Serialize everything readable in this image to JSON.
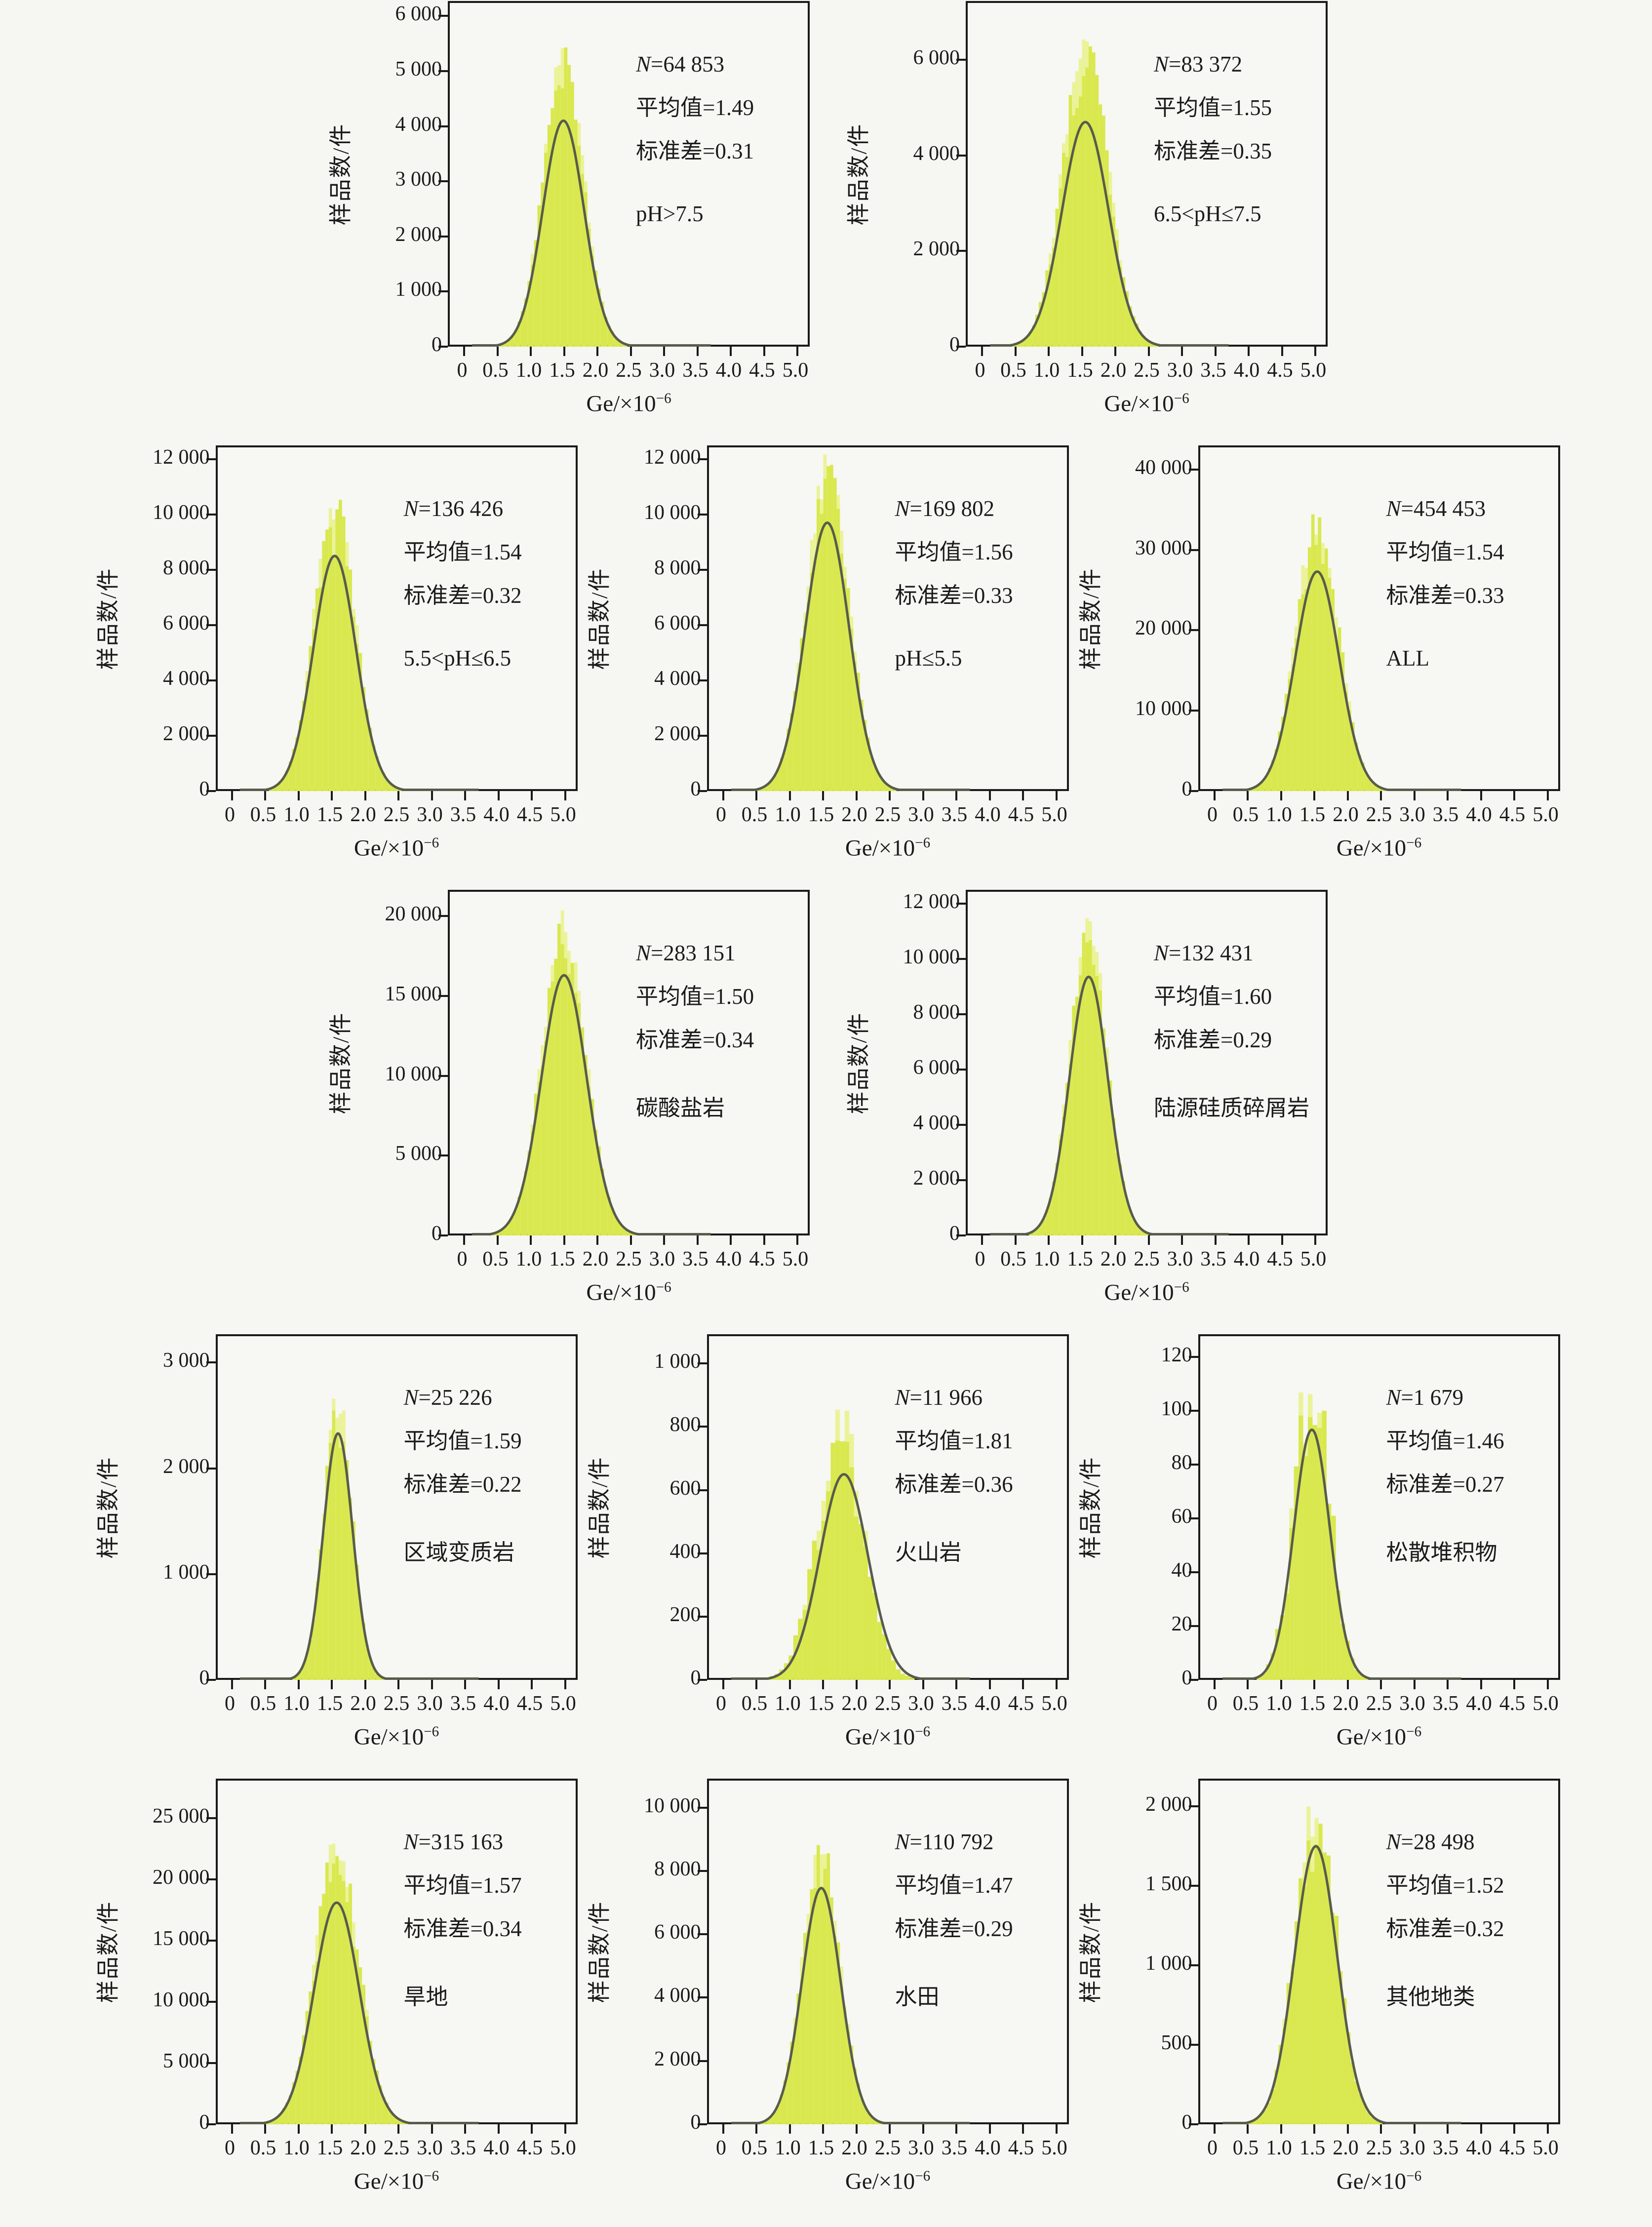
{
  "figure": {
    "background": "#f6f6f3",
    "text_color": "#1b1b1b",
    "histogram_fill": "#d9e84e",
    "histogram_fill_light": "#ebf398",
    "curve_color": "#585c4c",
    "axis_color": "#1a1a1a",
    "y_axis_label": "样品数/件",
    "x_axis_label_base": "Ge/×10",
    "x_axis_label_exp": "−6",
    "x_tick_values": [
      0,
      0.5,
      1.0,
      1.5,
      2.0,
      2.5,
      3.0,
      3.5,
      4.0,
      4.5,
      5.0
    ],
    "x_tick_labels": [
      "0",
      "0.5",
      "1.0",
      "1.5",
      "2.0",
      "2.5",
      "3.0",
      "3.5",
      "4.0",
      "4.5",
      "5.0"
    ],
    "annot_prefix": {
      "n": "N",
      "mean": "平均值",
      "std": "标准差"
    }
  },
  "layout_rows": [
    [
      0,
      1
    ],
    [
      2,
      3,
      4
    ],
    [
      5,
      6
    ],
    [
      7,
      8,
      9
    ],
    [
      10,
      11,
      12
    ]
  ],
  "chart_data": [
    {
      "type": "histogram+normal-fit",
      "group_label": "pH>7.5",
      "N_label": "N=64 853",
      "mean_label": "平均值=1.49",
      "std_label": "标准差=0.31",
      "N_value": "64 853",
      "mean_value": "1.49",
      "std_value": "0.31",
      "N": 64853,
      "mean": 1.49,
      "std": 0.31,
      "x_range": [
        0,
        5
      ],
      "y_max": 6200,
      "y_ticks": [
        0,
        1000,
        2000,
        3000,
        4000,
        5000,
        6000
      ],
      "y_tick_labels": [
        "0",
        "1 000",
        "2 000",
        "3 000",
        "4 000",
        "5 000",
        "6 000"
      ],
      "hist_peak": 5270,
      "curve_peak": 4100,
      "bin": 0.05,
      "jitter": 0.12,
      "hist_shift": 0
    },
    {
      "type": "histogram+normal-fit",
      "group_label": "6.5<pH≤7.5",
      "N_label": "N=83 372",
      "mean_label": "平均值=1.55",
      "std_label": "标准差=0.35",
      "N_value": "83 372",
      "mean_value": "1.55",
      "std_value": "0.35",
      "N": 83372,
      "mean": 1.55,
      "std": 0.35,
      "x_range": [
        0,
        5
      ],
      "y_max": 7150,
      "y_ticks": [
        0,
        2000,
        4000,
        6000
      ],
      "y_tick_labels": [
        "0",
        "2 000",
        "4 000",
        "6 000"
      ],
      "hist_peak": 6370,
      "curve_peak": 4700,
      "bin": 0.05,
      "jitter": 0.12,
      "hist_shift": 0
    },
    {
      "type": "histogram+normal-fit",
      "group_label": "5.5<pH≤6.5",
      "N_label": "N=136 426",
      "mean_label": "平均值=1.54",
      "std_label": "标准差=0.32",
      "N_value": "136 426",
      "mean_value": "1.54",
      "std_value": "0.32",
      "N": 136426,
      "mean": 1.54,
      "std": 0.32,
      "x_range": [
        0,
        5
      ],
      "y_max": 12350,
      "y_ticks": [
        0,
        2000,
        4000,
        6000,
        8000,
        10000,
        12000
      ],
      "y_tick_labels": [
        "0",
        "2 000",
        "4 000",
        "6 000",
        "8 000",
        "10 000",
        "12 000"
      ],
      "hist_peak": 10400,
      "curve_peak": 8500,
      "bin": 0.05,
      "jitter": 0.12,
      "hist_shift": 0
    },
    {
      "type": "histogram+normal-fit",
      "group_label": "pH≤5.5",
      "N_label": "N=169 802",
      "mean_label": "平均值=1.56",
      "std_label": "标准差=0.33",
      "N_value": "169 802",
      "mean_value": "1.56",
      "std_value": "0.33",
      "N": 169802,
      "mean": 1.56,
      "std": 0.33,
      "x_range": [
        0,
        5
      ],
      "y_max": 12350,
      "y_ticks": [
        0,
        2000,
        4000,
        6000,
        8000,
        10000,
        12000
      ],
      "y_tick_labels": [
        "0",
        "2 000",
        "4 000",
        "6 000",
        "8 000",
        "10 000",
        "12 000"
      ],
      "hist_peak": 11600,
      "curve_peak": 9700,
      "bin": 0.05,
      "jitter": 0.12,
      "hist_shift": 0
    },
    {
      "type": "histogram+normal-fit",
      "group_label": "ALL",
      "N_label": "N=454 453",
      "mean_label": "平均值=1.54",
      "std_label": "标准差=0.33",
      "N_value": "454 453",
      "mean_value": "1.54",
      "std_value": "0.33",
      "N": 454453,
      "mean": 1.54,
      "std": 0.33,
      "x_range": [
        0,
        5
      ],
      "y_max": 42500,
      "y_ticks": [
        0,
        10000,
        20000,
        30000,
        40000
      ],
      "y_tick_labels": [
        "0",
        "10 000",
        "20 000",
        "30 000",
        "40 000"
      ],
      "hist_peak": 33600,
      "curve_peak": 27300,
      "bin": 0.05,
      "jitter": 0.12,
      "hist_shift": 0
    },
    {
      "type": "histogram+normal-fit",
      "group_label": "碳酸盐岩",
      "N_label": "N=283 151",
      "mean_label": "平均值=1.50",
      "std_label": "标准差=0.34",
      "N_value": "283 151",
      "mean_value": "1.50",
      "std_value": "0.34",
      "N": 283151,
      "mean": 1.5,
      "std": 0.34,
      "x_range": [
        0,
        5
      ],
      "y_max": 21400,
      "y_ticks": [
        0,
        5000,
        10000,
        15000,
        20000
      ],
      "y_tick_labels": [
        "0",
        "5 000",
        "10 000",
        "15 000",
        "20 000"
      ],
      "hist_peak": 19400,
      "curve_peak": 16300,
      "bin": 0.05,
      "jitter": 0.12,
      "hist_shift": 0
    },
    {
      "type": "histogram+normal-fit",
      "group_label": "陆源硅质碎屑岩",
      "N_label": "N=132 431",
      "mean_label": "平均值=1.60",
      "std_label": "标准差=0.29",
      "N_value": "132 431",
      "mean_value": "1.60",
      "std_value": "0.29",
      "N": 132431,
      "mean": 1.6,
      "std": 0.29,
      "x_range": [
        0,
        5
      ],
      "y_max": 12350,
      "y_ticks": [
        0,
        2000,
        4000,
        6000,
        8000,
        10000,
        12000
      ],
      "y_tick_labels": [
        "0",
        "2 000",
        "4 000",
        "6 000",
        "8 000",
        "10 000",
        "12 000"
      ],
      "hist_peak": 10900,
      "curve_peak": 9350,
      "bin": 0.05,
      "jitter": 0.12,
      "hist_shift": 0
    },
    {
      "type": "histogram+normal-fit",
      "group_label": "区域变质岩",
      "N_label": "N=25 226",
      "mean_label": "平均值=1.59",
      "std_label": "标准差=0.22",
      "N_value": "25 226",
      "mean_value": "1.59",
      "std_value": "0.22",
      "N": 25226,
      "mean": 1.59,
      "std": 0.22,
      "x_range": [
        0,
        5
      ],
      "y_max": 3230,
      "y_ticks": [
        0,
        1000,
        2000,
        3000
      ],
      "y_tick_labels": [
        "0",
        "1 000",
        "2 000",
        "3 000"
      ],
      "hist_peak": 2650,
      "curve_peak": 2330,
      "bin": 0.05,
      "jitter": 0.14,
      "hist_shift": 0
    },
    {
      "type": "histogram+normal-fit",
      "group_label": "火山岩",
      "N_label": "N=11 966",
      "mean_label": "平均值=1.81",
      "std_label": "标准差=0.36",
      "N_value": "11 966",
      "mean_value": "1.81",
      "std_value": "0.36",
      "N": 11966,
      "mean": 1.81,
      "std": 0.36,
      "x_range": [
        0,
        5
      ],
      "y_max": 1080,
      "y_ticks": [
        0,
        200,
        400,
        600,
        800,
        1000
      ],
      "y_tick_labels": [
        "0",
        "200",
        "400",
        "600",
        "800",
        "1 000"
      ],
      "hist_peak": 800,
      "curve_peak": 650,
      "bin": 0.07,
      "jitter": 0.25,
      "hist_shift": -0.06
    },
    {
      "type": "histogram+normal-fit",
      "group_label": "松散堆积物",
      "N_label": "N=1 679",
      "mean_label": "平均值=1.46",
      "std_label": "标准差=0.27",
      "N_value": "1 679",
      "mean_value": "1.46",
      "std_value": "0.27",
      "N": 1679,
      "mean": 1.46,
      "std": 0.27,
      "x_range": [
        0,
        5
      ],
      "y_max": 127,
      "y_ticks": [
        0,
        20,
        40,
        60,
        80,
        100,
        120
      ],
      "y_tick_labels": [
        "0",
        "20",
        "40",
        "60",
        "80",
        "100",
        "120"
      ],
      "hist_peak": 113,
      "curve_peak": 93,
      "bin": 0.07,
      "jitter": 0.35,
      "hist_shift": 0
    },
    {
      "type": "histogram+normal-fit",
      "group_label": "旱地",
      "N_label": "N=315 163",
      "mean_label": "平均值=1.57",
      "std_label": "标准差=0.34",
      "N_value": "315 163",
      "mean_value": "1.57",
      "std_value": "0.34",
      "N": 315163,
      "mean": 1.57,
      "std": 0.34,
      "x_range": [
        0,
        5
      ],
      "y_max": 27900,
      "y_ticks": [
        0,
        5000,
        10000,
        15000,
        20000,
        25000
      ],
      "y_tick_labels": [
        "0",
        "5 000",
        "10 000",
        "15 000",
        "20 000",
        "25 000"
      ],
      "hist_peak": 22900,
      "curve_peak": 18100,
      "bin": 0.05,
      "jitter": 0.12,
      "hist_shift": 0
    },
    {
      "type": "histogram+normal-fit",
      "group_label": "水田",
      "N_label": "N=110 792",
      "mean_label": "平均值=1.47",
      "std_label": "标准差=0.29",
      "N_value": "110 792",
      "mean_value": "1.47",
      "std_value": "0.29",
      "N": 110792,
      "mean": 1.47,
      "std": 0.29,
      "x_range": [
        0,
        5
      ],
      "y_max": 10790,
      "y_ticks": [
        0,
        2000,
        4000,
        6000,
        8000,
        10000
      ],
      "y_tick_labels": [
        "0",
        "2 000",
        "4 000",
        "6 000",
        "8 000",
        "10 000"
      ],
      "hist_peak": 8700,
      "curve_peak": 7460,
      "bin": 0.05,
      "jitter": 0.12,
      "hist_shift": 0
    },
    {
      "type": "histogram+normal-fit",
      "group_label": "其他地类",
      "N_label": "N=28 498",
      "mean_label": "平均值=1.52",
      "std_label": "标准差=0.32",
      "N_value": "28 498",
      "mean_value": "1.52",
      "std_value": "0.32",
      "N": 28498,
      "mean": 1.52,
      "std": 0.32,
      "x_range": [
        0,
        5
      ],
      "y_max": 2150,
      "y_ticks": [
        0,
        500,
        1000,
        1500,
        2000
      ],
      "y_tick_labels": [
        "0",
        "500",
        "1 000",
        "1 500",
        "2 000"
      ],
      "hist_peak": 1985,
      "curve_peak": 1750,
      "bin": 0.06,
      "jitter": 0.18,
      "hist_shift": 0
    }
  ]
}
